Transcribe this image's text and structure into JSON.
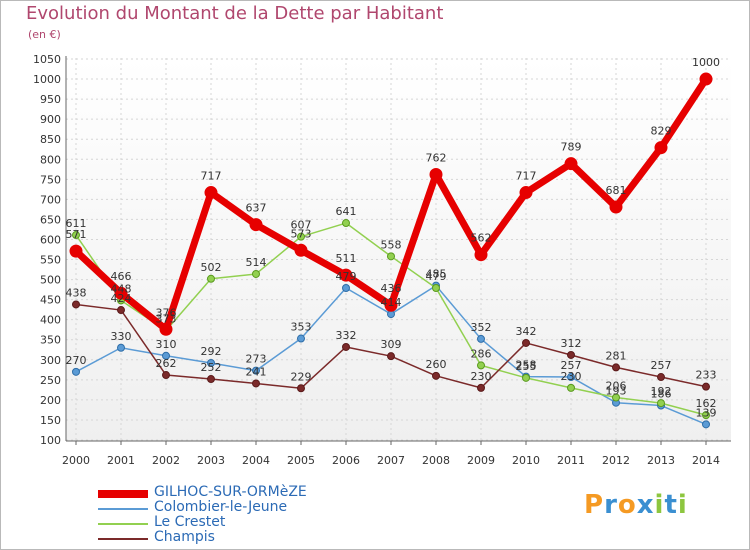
{
  "title": "Evolution du Montant de la Dette par Habitant",
  "unit_label": "(en €)",
  "logo_text": "Proxiti",
  "chart_data": {
    "type": "line",
    "title": "Evolution du Montant de la Dette par Habitant",
    "ylabel": "(en €)",
    "x": [
      2000,
      2001,
      2002,
      2003,
      2004,
      2005,
      2006,
      2007,
      2008,
      2009,
      2010,
      2011,
      2012,
      2013,
      2014
    ],
    "ylim": [
      100,
      1050
    ],
    "yticks": [
      100,
      150,
      200,
      250,
      300,
      350,
      400,
      450,
      500,
      550,
      600,
      650,
      700,
      750,
      800,
      850,
      900,
      950,
      1000,
      1050
    ],
    "grid": true,
    "legend_position": "bottom-left",
    "series": [
      {
        "name": "GILHOC-SUR-ORMèZE",
        "color": "#e60000",
        "width": 7,
        "radius": 6,
        "outline": "#e60000",
        "values": [
          571,
          466,
          376,
          717,
          637,
          573,
          511,
          436,
          762,
          562,
          717,
          789,
          681,
          829,
          1000
        ],
        "labels": [
          "571",
          "466",
          "376",
          "717",
          "637",
          "573",
          "511",
          "436",
          "762",
          "562",
          "717",
          "789",
          "681",
          "829",
          "1000"
        ]
      },
      {
        "name": "Colombier-le-Jeune",
        "color": "#5b9bd5",
        "width": 1.5,
        "radius": 3.5,
        "outline": "#2f6ea8",
        "values": [
          270,
          330,
          310,
          292,
          273,
          353,
          479,
          414,
          485,
          352,
          258,
          257,
          193,
          186,
          139
        ],
        "labels": [
          "270",
          "330",
          "310",
          "292",
          "273",
          "353",
          "479",
          "414",
          "485",
          "352",
          "258",
          "257",
          "193",
          "186",
          "139"
        ]
      },
      {
        "name": "Le Crestet",
        "color": "#92d050",
        "width": 1.5,
        "radius": 3.5,
        "outline": "#5a9a1f",
        "values": [
          611,
          448,
          373,
          502,
          514,
          607,
          641,
          558,
          479,
          286,
          255,
          230,
          206,
          192,
          162
        ],
        "labels": [
          "611",
          "448",
          "373",
          "502",
          "514",
          "607",
          "641",
          "558",
          "479",
          "286",
          "255",
          "230",
          "206",
          "192",
          "162"
        ]
      },
      {
        "name": "Champis",
        "color": "#7b2a2a",
        "width": 1.5,
        "radius": 3.5,
        "outline": "#5a1a1a",
        "values": [
          438,
          424,
          262,
          252,
          241,
          229,
          332,
          309,
          260,
          230,
          342,
          312,
          281,
          257,
          233
        ],
        "labels": [
          "438",
          "424",
          "262",
          "252",
          "241",
          "229",
          "332",
          "309",
          "260",
          "230",
          "342",
          "312",
          "281",
          "257",
          "233"
        ]
      }
    ]
  },
  "logo_colors": [
    "#f59a23",
    "#3a8fd1",
    "#f59a23",
    "#3a8fd1",
    "#8dc63f",
    "#3a8fd1",
    "#8dc63f"
  ]
}
